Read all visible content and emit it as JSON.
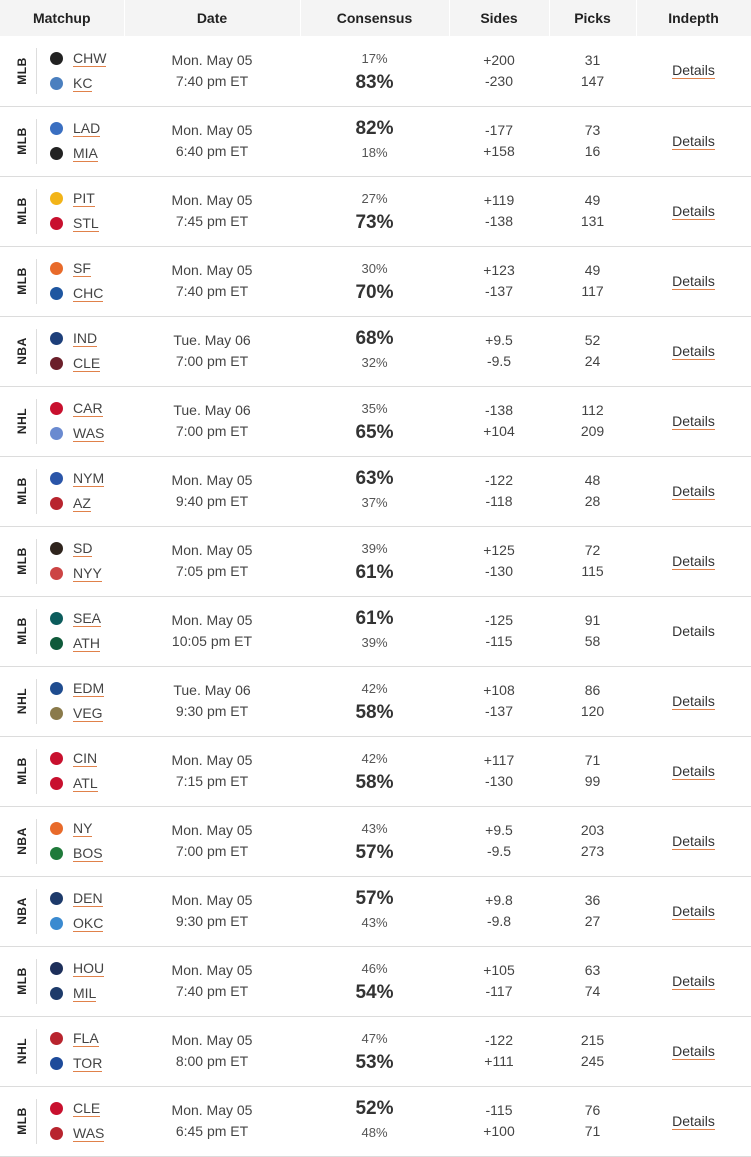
{
  "header": {
    "matchup": "Matchup",
    "date": "Date",
    "consensus": "Consensus",
    "sides": "Sides",
    "picks": "Picks",
    "indepth": "Indepth"
  },
  "colors": {
    "accent_underline": "#e0814a",
    "header_bg": "#f4f4f4",
    "row_divider": "#dcdcdc"
  },
  "rows": [
    {
      "league": "MLB",
      "away": "CHW",
      "home": "KC",
      "away_icon": "white-sox-icon",
      "home_icon": "royals-icon",
      "away_color": "#222",
      "home_color": "#4a7fbf",
      "day": "Mon. May 05",
      "time": "7:40 pm ET",
      "away_pct": "17%",
      "home_pct": "83%",
      "fav": "home",
      "away_side": "+200",
      "home_side": "-230",
      "away_picks": "31",
      "home_picks": "147",
      "details": "Details",
      "details_link": true
    },
    {
      "league": "MLB",
      "away": "LAD",
      "home": "MIA",
      "away_icon": "dodgers-icon",
      "home_icon": "marlins-icon",
      "away_color": "#3a6fc1",
      "home_color": "#222",
      "day": "Mon. May 05",
      "time": "6:40 pm ET",
      "away_pct": "82%",
      "home_pct": "18%",
      "fav": "away",
      "away_side": "-177",
      "home_side": "+158",
      "away_picks": "73",
      "home_picks": "16",
      "details": "Details",
      "details_link": true
    },
    {
      "league": "MLB",
      "away": "PIT",
      "home": "STL",
      "away_icon": "pirates-icon",
      "home_icon": "cardinals-icon",
      "away_color": "#f2b418",
      "home_color": "#c8102e",
      "day": "Mon. May 05",
      "time": "7:45 pm ET",
      "away_pct": "27%",
      "home_pct": "73%",
      "fav": "home",
      "away_side": "+119",
      "home_side": "-138",
      "away_picks": "49",
      "home_picks": "131",
      "details": "Details",
      "details_link": true
    },
    {
      "league": "MLB",
      "away": "SF",
      "home": "CHC",
      "away_icon": "giants-icon",
      "home_icon": "cubs-icon",
      "away_color": "#e86a2a",
      "home_color": "#1e56a0",
      "day": "Mon. May 05",
      "time": "7:40 pm ET",
      "away_pct": "30%",
      "home_pct": "70%",
      "fav": "home",
      "away_side": "+123",
      "home_side": "-137",
      "away_picks": "49",
      "home_picks": "117",
      "details": "Details",
      "details_link": true
    },
    {
      "league": "NBA",
      "away": "IND",
      "home": "CLE",
      "away_icon": "pacers-icon",
      "home_icon": "cavaliers-icon",
      "away_color": "#1d3f7a",
      "home_color": "#6b1f2a",
      "day": "Tue. May 06",
      "time": "7:00 pm ET",
      "away_pct": "68%",
      "home_pct": "32%",
      "fav": "away",
      "away_side": "+9.5",
      "home_side": "-9.5",
      "away_picks": "52",
      "home_picks": "24",
      "details": "Details",
      "details_link": true
    },
    {
      "league": "NHL",
      "away": "CAR",
      "home": "WAS",
      "away_icon": "hurricanes-icon",
      "home_icon": "capitals-icon",
      "away_color": "#c8102e",
      "home_color": "#6a8ad0",
      "day": "Tue. May 06",
      "time": "7:00 pm ET",
      "away_pct": "35%",
      "home_pct": "65%",
      "fav": "home",
      "away_side": "-138",
      "home_side": "+104",
      "away_picks": "112",
      "home_picks": "209",
      "details": "Details",
      "details_link": true
    },
    {
      "league": "MLB",
      "away": "NYM",
      "home": "AZ",
      "away_icon": "mets-icon",
      "home_icon": "diamondbacks-icon",
      "away_color": "#2a55a8",
      "home_color": "#b8242e",
      "day": "Mon. May 05",
      "time": "9:40 pm ET",
      "away_pct": "63%",
      "home_pct": "37%",
      "fav": "away",
      "away_side": "-122",
      "home_side": "-118",
      "away_picks": "48",
      "home_picks": "28",
      "details": "Details",
      "details_link": true
    },
    {
      "league": "MLB",
      "away": "SD",
      "home": "NYY",
      "away_icon": "padres-icon",
      "home_icon": "yankees-icon",
      "away_color": "#2f241d",
      "home_color": "#c44",
      "day": "Mon. May 05",
      "time": "7:05 pm ET",
      "away_pct": "39%",
      "home_pct": "61%",
      "fav": "home",
      "away_side": "+125",
      "home_side": "-130",
      "away_picks": "72",
      "home_picks": "115",
      "details": "Details",
      "details_link": true
    },
    {
      "league": "MLB",
      "away": "SEA",
      "home": "ATH",
      "away_icon": "mariners-icon",
      "home_icon": "athletics-icon",
      "away_color": "#0c5c5c",
      "home_color": "#0f5a3a",
      "day": "Mon. May 05",
      "time": "10:05 pm ET",
      "away_pct": "61%",
      "home_pct": "39%",
      "fav": "away",
      "away_side": "-125",
      "home_side": "-115",
      "away_picks": "91",
      "home_picks": "58",
      "details": "Details",
      "details_link": false
    },
    {
      "league": "NHL",
      "away": "EDM",
      "home": "VEG",
      "away_icon": "oilers-icon",
      "home_icon": "golden-knights-icon",
      "away_color": "#1f4c8f",
      "home_color": "#8a7a4a",
      "day": "Tue. May 06",
      "time": "9:30 pm ET",
      "away_pct": "42%",
      "home_pct": "58%",
      "fav": "home",
      "away_side": "+108",
      "home_side": "-137",
      "away_picks": "86",
      "home_picks": "120",
      "details": "Details",
      "details_link": true
    },
    {
      "league": "MLB",
      "away": "CIN",
      "home": "ATL",
      "away_icon": "reds-icon",
      "home_icon": "braves-icon",
      "away_color": "#c8102e",
      "home_color": "#c8102e",
      "day": "Mon. May 05",
      "time": "7:15 pm ET",
      "away_pct": "42%",
      "home_pct": "58%",
      "fav": "home",
      "away_side": "+117",
      "home_side": "-130",
      "away_picks": "71",
      "home_picks": "99",
      "details": "Details",
      "details_link": true
    },
    {
      "league": "NBA",
      "away": "NY",
      "home": "BOS",
      "away_icon": "knicks-icon",
      "home_icon": "celtics-icon",
      "away_color": "#e86a2a",
      "home_color": "#1f7a3a",
      "day": "Mon. May 05",
      "time": "7:00 pm ET",
      "away_pct": "43%",
      "home_pct": "57%",
      "fav": "home",
      "away_side": "+9.5",
      "home_side": "-9.5",
      "away_picks": "203",
      "home_picks": "273",
      "details": "Details",
      "details_link": true
    },
    {
      "league": "NBA",
      "away": "DEN",
      "home": "OKC",
      "away_icon": "nuggets-icon",
      "home_icon": "thunder-icon",
      "away_color": "#1d3a6a",
      "home_color": "#3a8ad0",
      "day": "Mon. May 05",
      "time": "9:30 pm ET",
      "away_pct": "57%",
      "home_pct": "43%",
      "fav": "away",
      "away_side": "+9.8",
      "home_side": "-9.8",
      "away_picks": "36",
      "home_picks": "27",
      "details": "Details",
      "details_link": true
    },
    {
      "league": "MLB",
      "away": "HOU",
      "home": "MIL",
      "away_icon": "astros-icon",
      "home_icon": "brewers-icon",
      "away_color": "#1d2f5a",
      "home_color": "#1d3a6a",
      "day": "Mon. May 05",
      "time": "7:40 pm ET",
      "away_pct": "46%",
      "home_pct": "54%",
      "fav": "home",
      "away_side": "+105",
      "home_side": "-117",
      "away_picks": "63",
      "home_picks": "74",
      "details": "Details",
      "details_link": true
    },
    {
      "league": "NHL",
      "away": "FLA",
      "home": "TOR",
      "away_icon": "panthers-icon",
      "home_icon": "maple-leafs-icon",
      "away_color": "#b8242e",
      "home_color": "#1d4a9a",
      "day": "Mon. May 05",
      "time": "8:00 pm ET",
      "away_pct": "47%",
      "home_pct": "53%",
      "fav": "home",
      "away_side": "-122",
      "home_side": "+111",
      "away_picks": "215",
      "home_picks": "245",
      "details": "Details",
      "details_link": true
    },
    {
      "league": "MLB",
      "away": "CLE",
      "home": "WAS",
      "away_icon": "guardians-icon",
      "home_icon": "nationals-icon",
      "away_color": "#c8102e",
      "home_color": "#b8242e",
      "day": "Mon. May 05",
      "time": "6:45 pm ET",
      "away_pct": "52%",
      "home_pct": "48%",
      "fav": "away",
      "away_side": "-115",
      "home_side": "+100",
      "away_picks": "76",
      "home_picks": "71",
      "details": "Details",
      "details_link": true
    }
  ]
}
